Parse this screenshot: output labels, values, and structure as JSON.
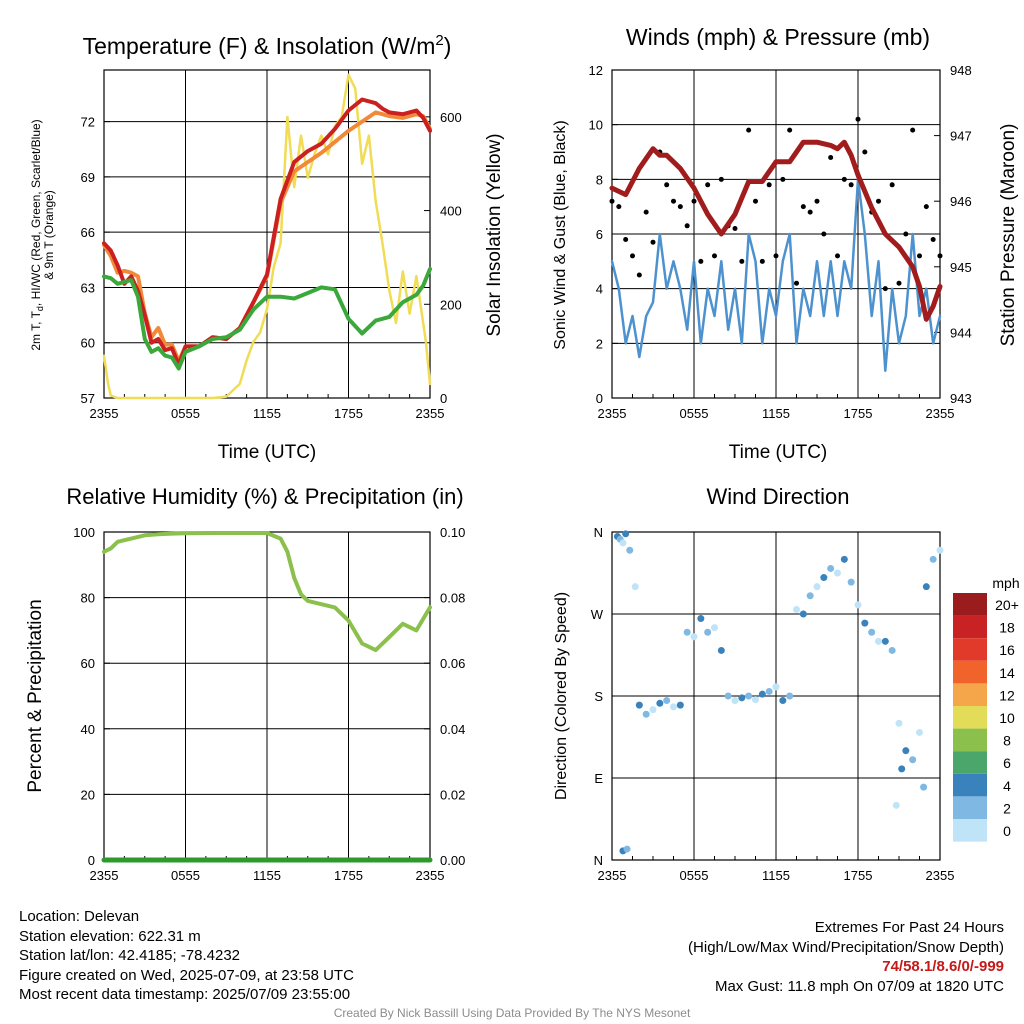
{
  "colors": {
    "temp": "#cc1f1f",
    "heat_index": "#3aa83a",
    "dewpoint_like": "#3aa83a",
    "temp_9m": "#f08a38",
    "insolation": "#f0dc55",
    "wind_speed": "#4d92cf",
    "gust": "#000000",
    "pressure": "#a11d1d",
    "rh": "#8cc04c",
    "precip": "#2e9a2e"
  },
  "x_ticks": [
    "2355",
    "0555",
    "1155",
    "1755",
    "2355"
  ],
  "panels": {
    "temperature": {
      "title_main": "Temperature (F) & Insolation (W/m",
      "title_sup": "2",
      "title_close": ")",
      "xlabel": "Time (UTC)",
      "ylabel_left_line1": "2m T, T",
      "ylabel_left_sub": "d",
      "ylabel_left_line1_rest": ", HI/WC (Red, Green, Scarlet/Blue)",
      "ylabel_left_line2": "& 9m T (Orange)",
      "ylabel_right": "Solar Insolation (Yellow)",
      "y_ticks_left": [
        "57",
        "60",
        "63",
        "66",
        "69",
        "72"
      ],
      "y_ticks_right": [
        "0",
        "200",
        "400",
        "600"
      ]
    },
    "winds": {
      "title": "Winds (mph) & Pressure (mb)",
      "xlabel": "Time (UTC)",
      "ylabel_left": "Sonic Wind & Gust (Blue, Black)",
      "ylabel_right": "Station Pressure (Maroon)",
      "y_ticks_left": [
        "0",
        "2",
        "4",
        "6",
        "8",
        "10",
        "12"
      ],
      "y_ticks_right": [
        "943",
        "944",
        "945",
        "946",
        "947",
        "948"
      ]
    },
    "humidity": {
      "title": "Relative Humidity (%) & Precipitation (in)",
      "ylabel_left": "Percent & Precipitation",
      "y_ticks_left": [
        "0",
        "20",
        "40",
        "60",
        "80",
        "100"
      ],
      "y_ticks_right": [
        "0.00",
        "0.02",
        "0.04",
        "0.06",
        "0.08",
        "0.10"
      ]
    },
    "direction": {
      "title": "Wind Direction",
      "ylabel_left": "Direction (Colored By Speed)",
      "y_ticks_left": [
        "N",
        "E",
        "S",
        "W",
        "N"
      ],
      "legend_title": "mph",
      "legend_labels": [
        "20+",
        "18",
        "16",
        "14",
        "12",
        "10",
        "8",
        "6",
        "4",
        "2",
        "0"
      ],
      "legend_colors": [
        "#9b1c1c",
        "#c82224",
        "#e23a2a",
        "#f0642c",
        "#f5a54a",
        "#e2dc58",
        "#8cc04c",
        "#4aa66a",
        "#3a82bc",
        "#7fb9e3",
        "#bfe3f7"
      ]
    }
  },
  "chart_data": [
    {
      "type": "line",
      "title": "Temperature (F) & Insolation (W/m2)",
      "xlabel": "Time (UTC)",
      "ylabel": "2m T, Td, HI/WC (Red, Green, Scarlet/Blue) & 9m T (Orange)",
      "ylabel_right": "Solar Insolation (Yellow)",
      "x_unit": "hours since 2355 UTC",
      "xlim": [
        0,
        24
      ],
      "ylim": [
        57,
        74.8
      ],
      "ylim_right": [
        0,
        700
      ],
      "series": [
        {
          "axis": "left",
          "x": [
            0,
            0.5,
            1,
            1.5,
            2,
            2.5,
            3,
            3.5,
            4,
            4.5,
            5,
            5.5,
            6,
            7,
            8,
            9,
            10,
            11,
            12,
            13,
            14,
            15,
            16,
            17,
            18,
            19,
            20,
            20.5,
            21,
            22,
            23,
            23.5,
            24
          ],
          "y": [
            65.4,
            65,
            64.2,
            63.2,
            63.6,
            62.8,
            61.5,
            60,
            60.2,
            59.6,
            59.7,
            58.8,
            59.8,
            59.8,
            60.3,
            60.2,
            60.8,
            62.2,
            63.7,
            67.8,
            69.8,
            70.4,
            70.8,
            71.6,
            72.6,
            73.2,
            73,
            72.7,
            72.5,
            72.4,
            72.6,
            72.2,
            71.5
          ]
        },
        {
          "axis": "left",
          "x": [
            0,
            0.5,
            1,
            1.5,
            2,
            2.5,
            3,
            3.5,
            4,
            4.5,
            5,
            5.5,
            6,
            7,
            8,
            9,
            10,
            11,
            12,
            13,
            14,
            15,
            16,
            17,
            18,
            19,
            20,
            21,
            22,
            23,
            23.5,
            24
          ],
          "y": [
            63.6,
            63.5,
            63.2,
            63.3,
            63.4,
            62.5,
            60.2,
            59.5,
            59.7,
            59.3,
            59.2,
            58.6,
            59.5,
            59.8,
            60.2,
            60.3,
            60.7,
            61.8,
            62.5,
            62.5,
            62.4,
            62.7,
            63,
            62.9,
            61.3,
            60.5,
            61.2,
            61.4,
            62.2,
            62.6,
            63.1,
            64
          ]
        },
        {
          "axis": "left",
          "x": [
            0,
            0.5,
            1,
            1.5,
            2,
            2.5,
            3,
            3.5,
            4,
            4.5,
            5,
            5.5,
            6,
            7,
            8,
            9,
            10,
            11,
            12,
            13,
            14,
            15,
            16,
            17,
            18,
            19,
            20,
            21,
            22,
            23,
            23.5,
            24
          ],
          "y": [
            65.3,
            64.7,
            63.8,
            63.9,
            63.8,
            63.6,
            61.6,
            60.3,
            60.8,
            59.9,
            59.9,
            59,
            59.8,
            59.8,
            60.3,
            60.2,
            60.8,
            62.2,
            63.6,
            67.6,
            69.3,
            69.8,
            70.3,
            70.9,
            71.5,
            72,
            72.5,
            72.3,
            72.2,
            72.4,
            72.3,
            71.6
          ]
        },
        {
          "axis": "right",
          "x": [
            0,
            0.3,
            0.5,
            1,
            2,
            4,
            6,
            8,
            9,
            10,
            10.5,
            11,
            11.5,
            12,
            12.5,
            13,
            13.5,
            14,
            14.5,
            15,
            15.5,
            16,
            16.5,
            17,
            17.5,
            18,
            18.5,
            19,
            19.5,
            20,
            20.5,
            21,
            21.5,
            22,
            22.5,
            23,
            23.3,
            23.7,
            24
          ],
          "y": [
            90,
            30,
            5,
            0,
            0,
            0,
            0,
            0,
            3,
            30,
            80,
            120,
            140,
            190,
            280,
            330,
            600,
            450,
            560,
            470,
            520,
            560,
            520,
            580,
            600,
            690,
            660,
            500,
            560,
            420,
            330,
            230,
            160,
            270,
            180,
            260,
            200,
            120,
            30
          ]
        }
      ]
    },
    {
      "type": "line",
      "title": "Winds (mph) & Pressure (mb)",
      "xlabel": "Time (UTC)",
      "ylabel": "Sonic Wind & Gust (Blue, Black)",
      "ylabel_right": "Station Pressure (Maroon)",
      "x_unit": "hours since 2355 UTC",
      "xlim": [
        0,
        24
      ],
      "ylim": [
        0,
        12
      ],
      "ylim_right": [
        943,
        948
      ],
      "series": [
        {
          "axis": "right",
          "x": [
            0,
            1,
            2,
            3,
            3.5,
            4,
            5,
            6,
            7,
            8,
            9,
            10,
            11,
            12,
            13,
            14,
            15,
            16,
            16.5,
            17,
            17.5,
            18,
            19,
            20,
            21,
            22,
            22.5,
            23,
            23.5,
            24
          ],
          "y": [
            946.2,
            946.1,
            946.5,
            946.8,
            946.7,
            946.7,
            946.5,
            946.2,
            945.8,
            945.5,
            945.8,
            946.3,
            946.3,
            946.6,
            946.6,
            946.9,
            946.9,
            946.85,
            946.8,
            946.9,
            946.7,
            946.4,
            945.9,
            945.5,
            945.3,
            945.0,
            944.7,
            944.2,
            944.4,
            944.7
          ]
        },
        {
          "axis": "left",
          "x": [
            0,
            0.5,
            1,
            1.5,
            2,
            2.5,
            3,
            3.5,
            4,
            4.5,
            5,
            5.5,
            6,
            6.5,
            7,
            7.5,
            8,
            8.5,
            9,
            9.5,
            10,
            10.5,
            11,
            11.5,
            12,
            12.5,
            13,
            13.5,
            14,
            14.5,
            15,
            15.5,
            16,
            16.5,
            17,
            17.5,
            18,
            18.5,
            19,
            19.5,
            20,
            20.5,
            21,
            21.5,
            22,
            22.5,
            23,
            23.5,
            24
          ],
          "y": [
            5,
            4,
            2,
            3,
            1.5,
            3,
            3.5,
            6,
            4,
            5,
            4,
            2.5,
            5,
            2,
            4,
            3,
            5,
            2.5,
            4,
            2,
            6,
            5,
            2,
            4,
            3,
            5,
            6,
            2,
            4,
            3,
            5,
            3,
            5,
            3,
            5,
            4,
            8,
            6,
            3,
            5,
            1,
            4,
            2,
            3,
            6,
            3,
            4,
            2,
            3
          ]
        }
      ]
    },
    {
      "type": "line",
      "title": "Relative Humidity (%) & Precipitation (in)",
      "ylabel": "Percent & Precipitation",
      "x_unit": "hours since 2355 UTC",
      "xlim": [
        0,
        24
      ],
      "ylim": [
        0,
        100
      ],
      "ylim_right": [
        0,
        0.1
      ],
      "series": [
        {
          "axis": "left",
          "x": [
            0,
            0.5,
            1,
            2,
            3,
            4,
            5,
            6,
            8,
            10,
            12,
            13,
            13.5,
            14,
            14.5,
            15,
            16,
            17,
            18,
            19,
            20,
            21,
            22,
            23,
            24
          ],
          "y": [
            94,
            95,
            97,
            98,
            99,
            99.3,
            99.5,
            99.6,
            99.7,
            99.7,
            99.7,
            98,
            94,
            86,
            81,
            79,
            78,
            77,
            73,
            66,
            64,
            68,
            72,
            70,
            77
          ]
        },
        {
          "axis": "right",
          "x": [
            0,
            24
          ],
          "y": [
            0,
            0
          ]
        }
      ]
    },
    {
      "type": "scatter",
      "title": "Wind Direction",
      "ylabel": "Direction (Colored By Speed)",
      "x_unit": "hours since 2355 UTC",
      "xlim": [
        0,
        24
      ],
      "ylim": [
        0,
        360
      ],
      "series": [
        {
          "x": [
            0.4,
            0.6,
            0.8,
            1.0,
            1.3,
            1.7,
            2.0,
            2.5,
            3,
            3.5,
            4,
            4.5,
            5,
            5.5,
            6,
            6.5,
            7,
            7.5,
            8,
            8.5,
            9,
            9.5,
            10,
            10.5,
            11,
            11.5,
            12,
            12.5,
            13,
            13.5,
            14,
            14.5,
            15,
            15.5,
            16,
            16.5,
            17,
            17.5,
            18,
            18.5,
            19,
            19.5,
            20,
            20.5,
            21,
            21.5,
            22,
            22.5,
            23,
            23.5,
            24,
            0.8,
            1.1,
            20.8,
            21.2,
            22.8
          ],
          "y": [
            355,
            352,
            348,
            358,
            340,
            300,
            170,
            160,
            165,
            172,
            175,
            168,
            170,
            250,
            245,
            265,
            250,
            255,
            230,
            180,
            175,
            178,
            180,
            176,
            182,
            185,
            190,
            175,
            180,
            275,
            270,
            290,
            300,
            310,
            320,
            315,
            330,
            305,
            280,
            260,
            250,
            240,
            240,
            230,
            150,
            120,
            110,
            140,
            300,
            330,
            340,
            10,
            12,
            60,
            100,
            80
          ]
        }
      ]
    }
  ],
  "footer": {
    "location": "Location: Delevan",
    "elevation": "Station elevation: 622.31 m",
    "latlon": "Station lat/lon: 42.4185; -78.4232",
    "created": "Figure created on Wed, 2025-07-09, at 23:58 UTC",
    "recent": "Most recent data timestamp: 2025/07/09 23:55:00",
    "extremes_title": "Extremes For Past 24 Hours",
    "extremes_desc": "(High/Low/Max Wind/Precipitation/Snow Depth)",
    "extremes_values": "74/58.1/8.6/0/-999",
    "max_gust": "Max Gust: 11.8 mph On 07/09 at 1820 UTC",
    "credit": "Created By Nick Bassill Using Data Provided By The NYS Mesonet"
  }
}
